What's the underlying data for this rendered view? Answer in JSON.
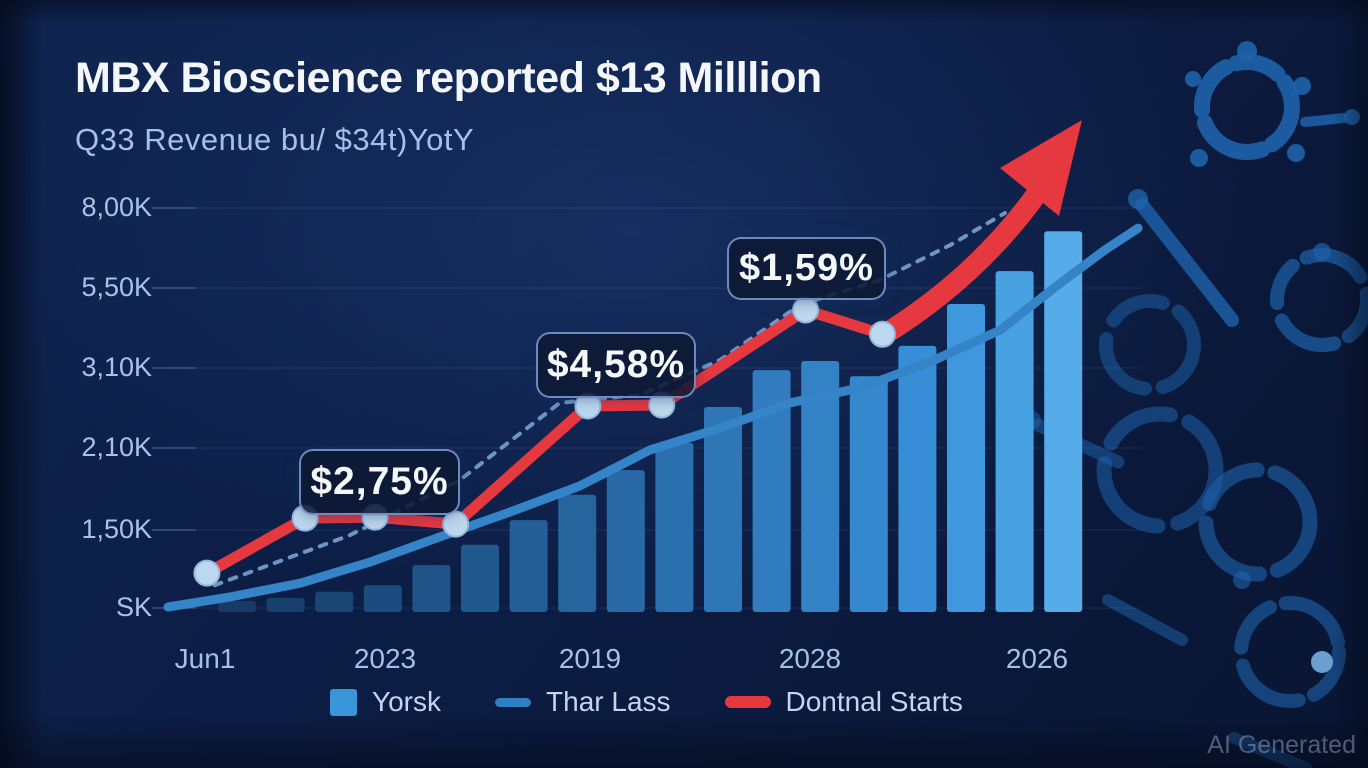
{
  "header": {
    "title": "MBX Bioscience reported $13 Milllion",
    "subtitle": "Q33 Revenue bu/ $34t)YotY"
  },
  "watermark": "AI Generated",
  "legend": {
    "items": [
      {
        "label": "Yorsk",
        "color": "#3a96d9",
        "swatch": "square"
      },
      {
        "label": "Thar Lass",
        "color": "#2f7fc2",
        "swatch": "line"
      },
      {
        "label": "Dontnal Starts",
        "color": "#e6383f",
        "swatch": "line"
      }
    ]
  },
  "chart_data": {
    "type": "bar",
    "title": "MBX Bioscience reported $13 Milllion",
    "subtitle": "Q33 Revenue bu/ $34t)YotY",
    "y_ticks": [
      "8,00K",
      "5,50K",
      "3,10K",
      "2,10K",
      "1,50K",
      "SK"
    ],
    "x_ticks": [
      "Jun1",
      "2023",
      "2019",
      "2028",
      "2026"
    ],
    "ylim": [
      0,
      8
    ],
    "grid": true,
    "legend_position": "bottom",
    "bars": {
      "name": "Yorsk",
      "values_k": [
        0.22,
        0.28,
        0.4,
        0.53,
        0.93,
        1.33,
        1.82,
        2.32,
        2.81,
        3.35,
        4.06,
        4.79,
        4.97,
        4.67,
        5.27,
        6.1,
        6.75,
        7.54
      ],
      "colors": [
        "#173a66",
        "#18406e",
        "#1a4676",
        "#1c4c7e",
        "#1f5286",
        "#21588e",
        "#245e96",
        "#26649e",
        "#296aa6",
        "#2b70ae",
        "#2e76b6",
        "#307cbe",
        "#3382c6",
        "#3588ce",
        "#388ed6",
        "#3f97dd",
        "#48a2e2",
        "#55ace8"
      ]
    },
    "series": [
      {
        "name": "trend-dashed",
        "style": "dashed",
        "color": "#7fa9dc",
        "width": 4,
        "markers": false,
        "points": [
          {
            "x": 0.048,
            "v": 0.53
          },
          {
            "x": 0.187,
            "v": 1.52
          },
          {
            "x": 0.3,
            "v": 2.61
          },
          {
            "x": 0.403,
            "v": 4.14
          },
          {
            "x": 0.486,
            "v": 4.3
          },
          {
            "x": 0.568,
            "v": 4.99
          },
          {
            "x": 0.65,
            "v": 6.08
          },
          {
            "x": 0.732,
            "v": 6.57
          },
          {
            "x": 0.805,
            "v": 7.27
          },
          {
            "x": 0.861,
            "v": 7.9
          }
        ]
      },
      {
        "name": "Thar Lass",
        "style": "solid",
        "color": "#3584c8",
        "width": 9,
        "markers": false,
        "points": [
          {
            "x": 0.0,
            "v": 0.1
          },
          {
            "x": 0.064,
            "v": 0.3
          },
          {
            "x": 0.136,
            "v": 0.57
          },
          {
            "x": 0.208,
            "v": 0.99
          },
          {
            "x": 0.28,
            "v": 1.49
          },
          {
            "x": 0.352,
            "v": 1.98
          },
          {
            "x": 0.424,
            "v": 2.5
          },
          {
            "x": 0.496,
            "v": 3.21
          },
          {
            "x": 0.568,
            "v": 3.64
          },
          {
            "x": 0.64,
            "v": 4.14
          },
          {
            "x": 0.712,
            "v": 4.44
          },
          {
            "x": 0.784,
            "v": 4.95
          },
          {
            "x": 0.856,
            "v": 5.58
          },
          {
            "x": 0.918,
            "v": 6.51
          },
          {
            "x": 0.964,
            "v": 7.17
          },
          {
            "x": 0.998,
            "v": 7.6
          }
        ]
      },
      {
        "name": "Dontnal Starts",
        "style": "solid",
        "color": "#e6383f",
        "width": 11,
        "markers": true,
        "points": [
          {
            "x": 0.04,
            "v": 0.77
          },
          {
            "x": 0.141,
            "v": 1.86
          },
          {
            "x": 0.213,
            "v": 1.88
          },
          {
            "x": 0.296,
            "v": 1.74
          },
          {
            "x": 0.432,
            "v": 4.08
          },
          {
            "x": 0.508,
            "v": 4.1
          },
          {
            "x": 0.656,
            "v": 5.98
          },
          {
            "x": 0.735,
            "v": 5.5
          }
        ]
      }
    ],
    "annotations": [
      {
        "text": "$2,75%"
      },
      {
        "text": "$4,58%"
      },
      {
        "text": "$1,59%"
      }
    ],
    "arrow": {
      "color": "#e6383f",
      "direction": "up-right"
    },
    "marker_fill": "#bdd7ee",
    "marker_stroke": "#93b9dc"
  }
}
